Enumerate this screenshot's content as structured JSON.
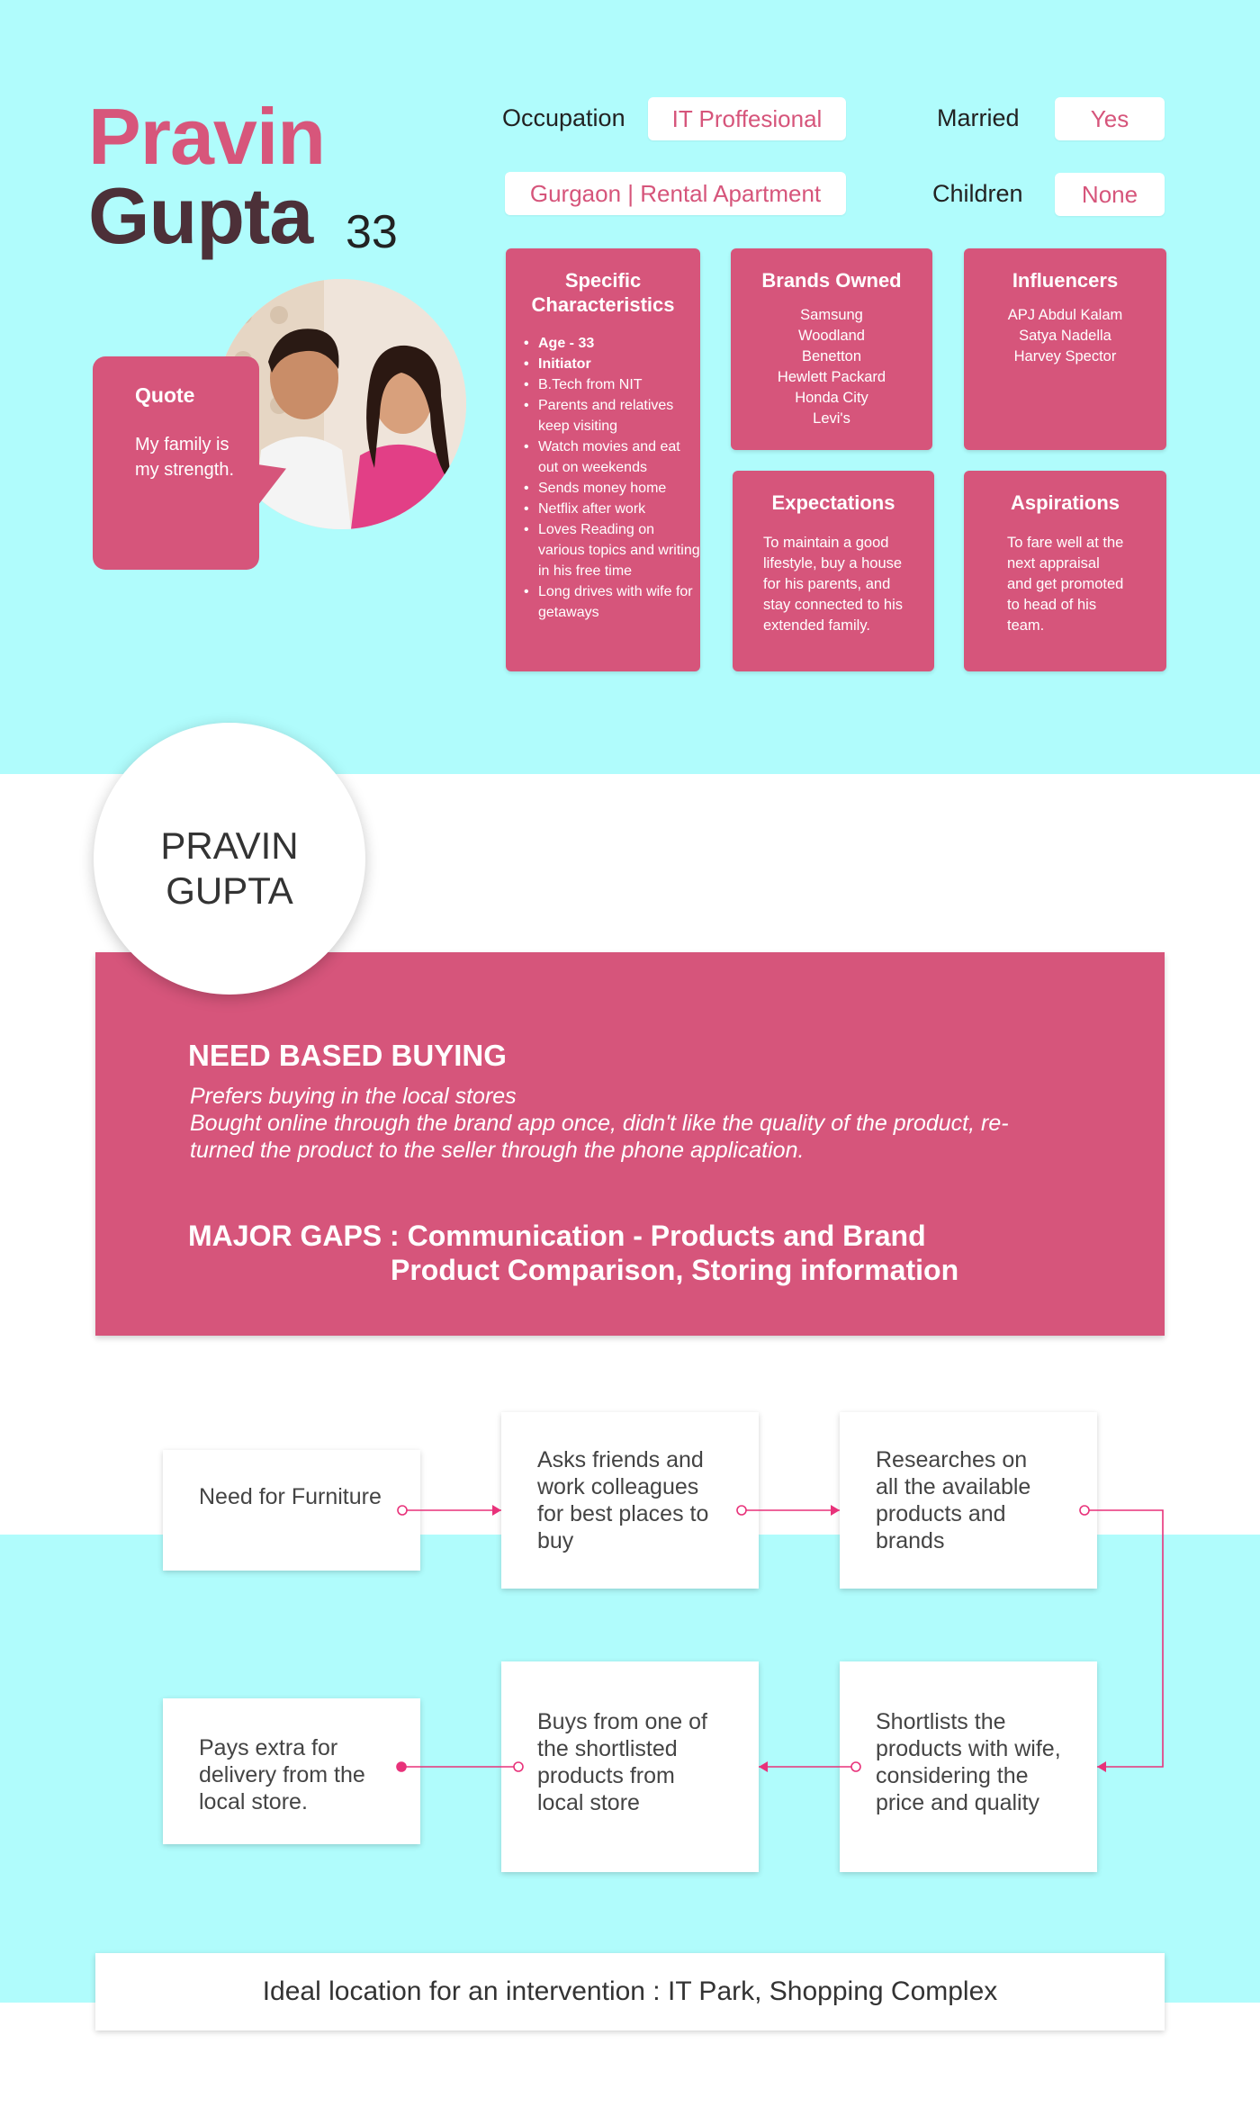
{
  "persona": {
    "first_name": "Pravin",
    "last_name": "Gupta",
    "age": "33"
  },
  "quote": {
    "title": "Quote",
    "text": "My family is my strength."
  },
  "info": {
    "occupation_label": "Occupation",
    "occupation_value": "IT Proffesional",
    "married_label": "Married",
    "married_value": "Yes",
    "location_value": "Gurgaon | Rental Apartment",
    "children_label": "Children",
    "children_value": "None"
  },
  "cards": {
    "characteristics": {
      "title": "Specific Characteristics",
      "items": [
        "Age - 33",
        "Initiator",
        "B.Tech from NIT",
        "Parents and relatives keep visiting",
        "Watch movies and eat out on weekends",
        "Sends money home",
        "Netflix after work",
        "Loves Reading on various topics and writing in his free time",
        "Long drives with wife for getaways"
      ]
    },
    "brands": {
      "title": "Brands Owned",
      "items": [
        "Samsung",
        "Woodland",
        "Benetton",
        "Hewlett Packard",
        "Honda City",
        "Levi's"
      ]
    },
    "influencers": {
      "title": "Influencers",
      "items": [
        "APJ Abdul Kalam",
        "Satya Nadella",
        "Harvey Spector"
      ]
    },
    "expectations": {
      "title": "Expectations",
      "text": "To maintain a good lifestyle, buy a house for his parents, and stay connected to his extended family."
    },
    "aspirations": {
      "title": "Aspirations",
      "text": "To fare well at the next appraisal and get promoted to head of his team."
    }
  },
  "summary": {
    "name_line1": "PRAVIN",
    "name_line2": "GUPTA",
    "need_title": "NEED BASED BUYING",
    "need_line1": "Prefers buying in the local stores",
    "need_line2": "Bought online through the brand app once, didn't like the quality of the product, re-turned the product to the seller through the phone application.",
    "gaps_line1": "MAJOR GAPS : Communication - Products and Brand",
    "gaps_line2": "Product Comparison, Storing information"
  },
  "journey": {
    "steps": [
      "Need for Furniture",
      "Asks friends and work colleagues for best places to buy",
      "Researches on all the available products and brands",
      "Shortlists the products with wife, considering the price and quality",
      "Buys from one of the shortlisted products from local store",
      "Pays extra for delivery from the local store."
    ],
    "arrow_color": "#e8327a"
  },
  "footer": {
    "text": "Ideal location for an intervention : IT Park, Shopping Complex"
  },
  "colors": {
    "cyan": "#b0fcfc",
    "pink": "#d6557b",
    "dark": "#4c3038"
  }
}
